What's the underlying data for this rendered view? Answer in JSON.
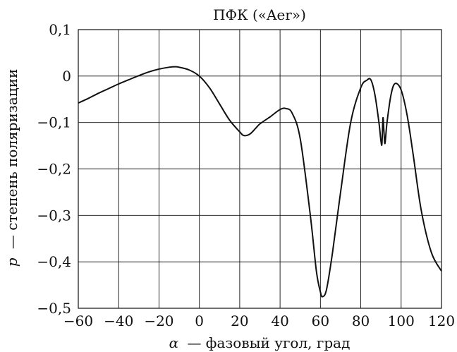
{
  "chart_data": {
    "type": "line",
    "title": "ПФК («Aer»)",
    "xlabel_var": "α",
    "xlabel_text": "— фазовый угол, град",
    "ylabel_var": "p",
    "ylabel_text": "— степень поляризации",
    "xlim": [
      -60,
      120
    ],
    "ylim": [
      -0.5,
      0.1
    ],
    "grid": true,
    "x_ticks": [
      -60,
      -40,
      -20,
      0,
      20,
      40,
      60,
      80,
      100,
      120
    ],
    "x_tick_labels": [
      "−60",
      "−40",
      "−20",
      "0",
      "20",
      "40",
      "60",
      "80",
      "100",
      "120"
    ],
    "y_ticks": [
      0.1,
      0,
      -0.1,
      -0.2,
      -0.3,
      -0.4,
      -0.5
    ],
    "y_tick_labels": [
      "0,1",
      "0",
      "−0,1",
      "−0,2",
      "−0,3",
      "−0,4",
      "−0,5"
    ],
    "series": [
      {
        "x": [
          -60,
          -55,
          -50,
          -45,
          -40,
          -35,
          -30,
          -25,
          -20,
          -15,
          -12,
          -10,
          -5,
          0,
          5,
          10,
          15,
          20,
          22,
          25,
          28,
          30,
          35,
          40,
          43,
          46,
          50,
          55,
          58,
          60,
          61,
          63,
          66,
          70,
          75,
          80,
          83,
          85,
          87,
          89,
          90,
          90.5,
          91,
          91.5,
          92,
          93,
          95,
          97,
          100,
          103,
          106,
          110,
          115,
          120
        ],
        "y": [
          -0.058,
          -0.048,
          -0.037,
          -0.027,
          -0.017,
          -0.008,
          0.001,
          0.009,
          0.015,
          0.019,
          0.02,
          0.019,
          0.013,
          0.0,
          -0.025,
          -0.06,
          -0.095,
          -0.12,
          -0.128,
          -0.125,
          -0.112,
          -0.103,
          -0.088,
          -0.072,
          -0.07,
          -0.08,
          -0.135,
          -0.3,
          -0.42,
          -0.465,
          -0.475,
          -0.46,
          -0.38,
          -0.25,
          -0.1,
          -0.025,
          -0.009,
          -0.008,
          -0.04,
          -0.1,
          -0.14,
          -0.145,
          -0.09,
          -0.12,
          -0.145,
          -0.1,
          -0.04,
          -0.016,
          -0.03,
          -0.085,
          -0.17,
          -0.29,
          -0.38,
          -0.42
        ]
      }
    ]
  }
}
